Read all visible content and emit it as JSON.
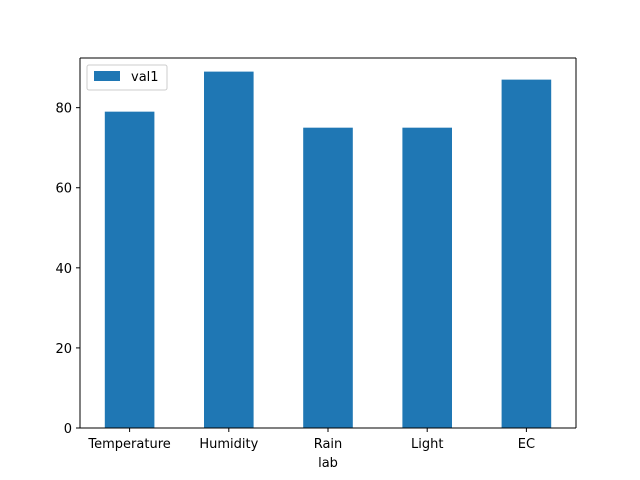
{
  "chart_data": {
    "type": "bar",
    "categories": [
      "Temperature",
      "Humidity",
      "Rain",
      "Light",
      "EC"
    ],
    "series": [
      {
        "name": "val1",
        "values": [
          79,
          89,
          75,
          75,
          87
        ],
        "color": "#1f77b4"
      }
    ],
    "xlabel": "lab",
    "ylabel": "",
    "ylim": [
      0,
      92.4
    ],
    "yticks": [
      0,
      20,
      40,
      60,
      80
    ],
    "grid": false,
    "legend": "top-left"
  }
}
